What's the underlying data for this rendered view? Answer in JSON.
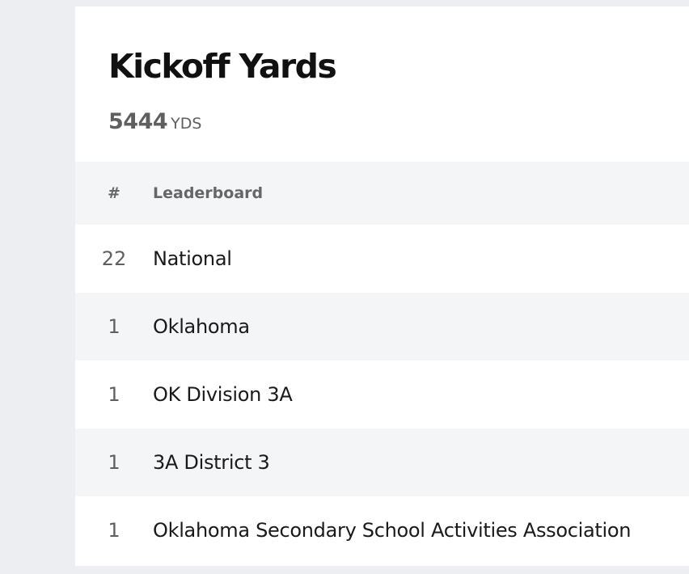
{
  "stat_card": {
    "title": "Kickoff Yards",
    "value": "5444",
    "unit": "YDS"
  },
  "leaderboard": {
    "columns": {
      "rank": "#",
      "name": "Leaderboard"
    },
    "rows": [
      {
        "rank": "22",
        "name": "National"
      },
      {
        "rank": "1",
        "name": "Oklahoma"
      },
      {
        "rank": "1",
        "name": "OK Division 3A"
      },
      {
        "rank": "1",
        "name": "3A District 3"
      },
      {
        "rank": "1",
        "name": "Oklahoma Secondary School Activities Association"
      }
    ]
  }
}
